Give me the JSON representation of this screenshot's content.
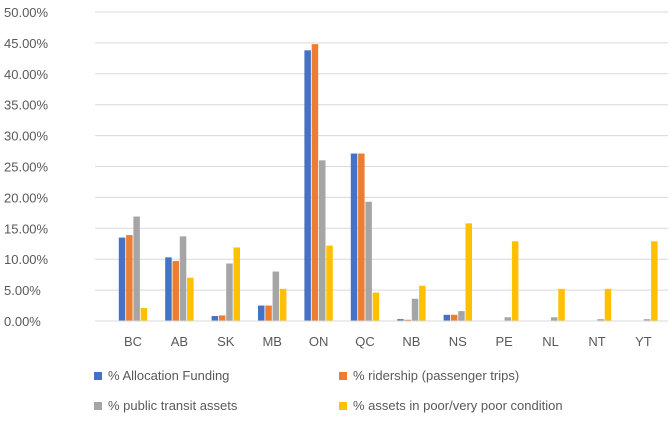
{
  "chart_data": {
    "type": "bar",
    "categories": [
      "BC",
      "AB",
      "SK",
      "MB",
      "ON",
      "QC",
      "NB",
      "NS",
      "PE",
      "NL",
      "NT",
      "YT"
    ],
    "ylim": [
      0,
      50
    ],
    "y_ticks": [
      "0.00%",
      "5.00%",
      "10.00%",
      "15.00%",
      "20.00%",
      "25.00%",
      "30.00%",
      "35.00%",
      "40.00%",
      "45.00%",
      "50.00%"
    ],
    "grid": true,
    "legend_position": "bottom",
    "series": [
      {
        "name": "% Allocation Funding",
        "color": "#4472C4",
        "values": [
          13.5,
          10.3,
          0.8,
          2.5,
          43.8,
          27.1,
          0.3,
          1.0,
          0,
          0,
          0,
          0
        ]
      },
      {
        "name": "% ridership (passenger trips)",
        "color": "#ED7D31",
        "values": [
          13.9,
          9.7,
          0.9,
          2.5,
          44.8,
          27.1,
          0.2,
          1.0,
          0,
          0,
          0,
          0
        ]
      },
      {
        "name": "% public transit assets",
        "color": "#A5A5A5",
        "values": [
          16.9,
          13.7,
          9.3,
          8.0,
          26.0,
          19.3,
          3.6,
          1.6,
          0.6,
          0.6,
          0.3,
          0.3
        ]
      },
      {
        "name": "% assets in poor/very poor condition",
        "color": "#FFC000",
        "values": [
          2.1,
          7.0,
          11.9,
          5.2,
          12.2,
          4.6,
          5.7,
          15.8,
          12.9,
          5.2,
          5.2,
          12.9
        ]
      }
    ]
  }
}
